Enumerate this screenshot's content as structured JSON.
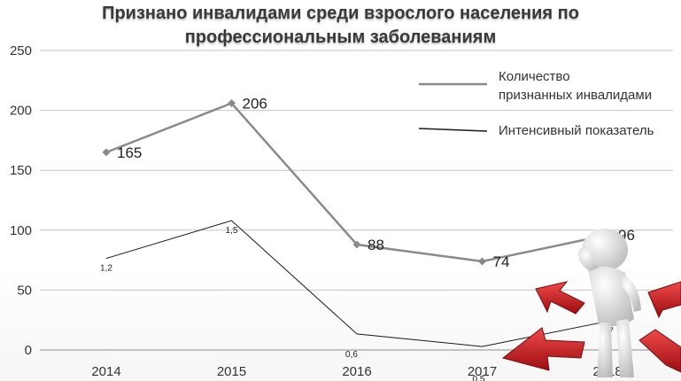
{
  "chart_data": {
    "type": "line",
    "title_line1": "Признано инвалидами среди взрослого населения по",
    "title_line2": "профессиональным заболеваниям",
    "categories": [
      "2014",
      "2015",
      "2016",
      "2017",
      "2018"
    ],
    "ylim": [
      0,
      250
    ],
    "yticks": [
      "0",
      "50",
      "100",
      "150",
      "200",
      "250"
    ],
    "grid": true,
    "legend_position": "top-right",
    "series": [
      {
        "name": "Количество признанных инвалидами",
        "legend_lines": [
          "Количество",
          "признанных инвалидами"
        ],
        "values": [
          165,
          206,
          88,
          74,
          96
        ],
        "labels": [
          "165",
          "206",
          "88",
          "74",
          "96"
        ],
        "color": "#8a8a8a",
        "marker": "diamond"
      },
      {
        "name": "Интенсивный показатель",
        "legend_lines": [
          "Интенсивный  показатель"
        ],
        "values": [
          1.2,
          1.5,
          0.6,
          0.5,
          0.7
        ],
        "labels": [
          "1,2",
          "1,5",
          "0,6",
          "0,5",
          "0,7"
        ],
        "color": "#1a1a1a",
        "marker": "none"
      }
    ]
  },
  "colors": {
    "arrow_red": "#d21a1f",
    "figure_white": "#f2f2f2"
  },
  "decoration": "3d-figure-with-red-arrows-icon"
}
